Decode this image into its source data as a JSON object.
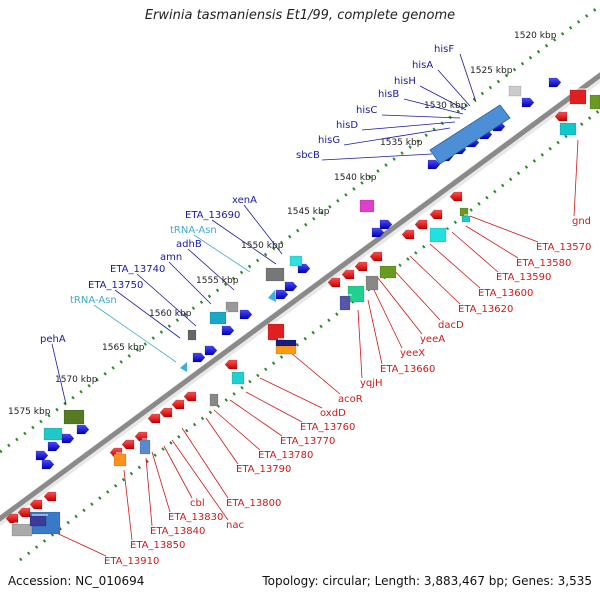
{
  "title": "Erwinia tasmaniensis Et1/99, complete genome",
  "footer": {
    "accession": "Accession: NC_010694",
    "topology": "Topology: circular; Length: 3,883,467 bp; Genes: 3,535"
  },
  "colors": {
    "protein_gene": "#e01010",
    "protein_gene_alt": "#1010e0",
    "trna_label": "#44aacc",
    "gene_label": "#1a1aa0",
    "leader_red": "#d01818",
    "leader_blue": "#2a2aaa",
    "backbone": "#999999",
    "tick": "#2a8a2a"
  },
  "kbp_labels": [
    "1520 kbp",
    "1525 kbp",
    "1530 kbp",
    "1535 kbp",
    "1540 kbp",
    "1545 kbp",
    "1550 kbp",
    "1555 kbp",
    "1560 kbp",
    "1565 kbp",
    "1570 kbp",
    "1575 kbp"
  ],
  "upper_labels": [
    {
      "text": "hisF",
      "kind": "gene"
    },
    {
      "text": "hisA",
      "kind": "gene"
    },
    {
      "text": "hisH",
      "kind": "gene"
    },
    {
      "text": "hisB",
      "kind": "gene"
    },
    {
      "text": "hisC",
      "kind": "gene"
    },
    {
      "text": "hisD",
      "kind": "gene"
    },
    {
      "text": "hisG",
      "kind": "gene"
    },
    {
      "text": "sbcB",
      "kind": "gene"
    },
    {
      "text": "xenA",
      "kind": "gene"
    },
    {
      "text": "ETA_13690",
      "kind": "gene"
    },
    {
      "text": "tRNA-Asn",
      "kind": "trna"
    },
    {
      "text": "adhB",
      "kind": "gene"
    },
    {
      "text": "amn",
      "kind": "gene"
    },
    {
      "text": "ETA_13740",
      "kind": "gene"
    },
    {
      "text": "ETA_13750",
      "kind": "gene"
    },
    {
      "text": "tRNA-Asn",
      "kind": "trna"
    },
    {
      "text": "pehA",
      "kind": "gene"
    }
  ],
  "lower_labels": [
    {
      "text": "gnd"
    },
    {
      "text": "ETA_13570"
    },
    {
      "text": "ETA_13580"
    },
    {
      "text": "ETA_13590"
    },
    {
      "text": "ETA_13600"
    },
    {
      "text": "ETA_13620"
    },
    {
      "text": "dacD"
    },
    {
      "text": "yeeA"
    },
    {
      "text": "yeeX"
    },
    {
      "text": "ETA_13660"
    },
    {
      "text": "yqjH"
    },
    {
      "text": "acoR"
    },
    {
      "text": "oxdD"
    },
    {
      "text": "ETA_13760"
    },
    {
      "text": "ETA_13770"
    },
    {
      "text": "ETA_13780"
    },
    {
      "text": "ETA_13790"
    },
    {
      "text": "ETA_13800"
    },
    {
      "text": "nac"
    },
    {
      "text": "cbl"
    },
    {
      "text": "ETA_13830"
    },
    {
      "text": "ETA_13840"
    },
    {
      "text": "ETA_13850"
    },
    {
      "text": "ETA_13910"
    }
  ]
}
